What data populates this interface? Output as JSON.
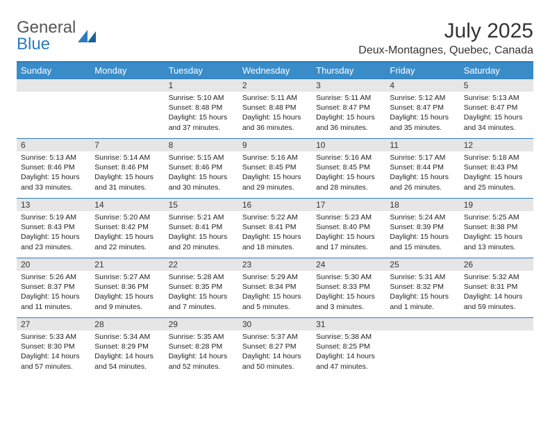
{
  "logo": {
    "text1": "General",
    "text2": "Blue"
  },
  "title": "July 2025",
  "location": "Deux-Montagnes, Quebec, Canada",
  "colors": {
    "header_bg": "#3a8cc9",
    "divider": "#2b7bbf",
    "day_head_bg": "#e6e6e6",
    "text": "#222222"
  },
  "weekday_labels": [
    "Sunday",
    "Monday",
    "Tuesday",
    "Wednesday",
    "Thursday",
    "Friday",
    "Saturday"
  ],
  "grid": {
    "cols": 7,
    "rows": 5,
    "first_weekday_index": 2,
    "days_in_month": 31
  },
  "days": {
    "1": {
      "sunrise": "5:10 AM",
      "sunset": "8:48 PM",
      "daylight": "15 hours and 37 minutes."
    },
    "2": {
      "sunrise": "5:11 AM",
      "sunset": "8:48 PM",
      "daylight": "15 hours and 36 minutes."
    },
    "3": {
      "sunrise": "5:11 AM",
      "sunset": "8:47 PM",
      "daylight": "15 hours and 36 minutes."
    },
    "4": {
      "sunrise": "5:12 AM",
      "sunset": "8:47 PM",
      "daylight": "15 hours and 35 minutes."
    },
    "5": {
      "sunrise": "5:13 AM",
      "sunset": "8:47 PM",
      "daylight": "15 hours and 34 minutes."
    },
    "6": {
      "sunrise": "5:13 AM",
      "sunset": "8:46 PM",
      "daylight": "15 hours and 33 minutes."
    },
    "7": {
      "sunrise": "5:14 AM",
      "sunset": "8:46 PM",
      "daylight": "15 hours and 31 minutes."
    },
    "8": {
      "sunrise": "5:15 AM",
      "sunset": "8:46 PM",
      "daylight": "15 hours and 30 minutes."
    },
    "9": {
      "sunrise": "5:16 AM",
      "sunset": "8:45 PM",
      "daylight": "15 hours and 29 minutes."
    },
    "10": {
      "sunrise": "5:16 AM",
      "sunset": "8:45 PM",
      "daylight": "15 hours and 28 minutes."
    },
    "11": {
      "sunrise": "5:17 AM",
      "sunset": "8:44 PM",
      "daylight": "15 hours and 26 minutes."
    },
    "12": {
      "sunrise": "5:18 AM",
      "sunset": "8:43 PM",
      "daylight": "15 hours and 25 minutes."
    },
    "13": {
      "sunrise": "5:19 AM",
      "sunset": "8:43 PM",
      "daylight": "15 hours and 23 minutes."
    },
    "14": {
      "sunrise": "5:20 AM",
      "sunset": "8:42 PM",
      "daylight": "15 hours and 22 minutes."
    },
    "15": {
      "sunrise": "5:21 AM",
      "sunset": "8:41 PM",
      "daylight": "15 hours and 20 minutes."
    },
    "16": {
      "sunrise": "5:22 AM",
      "sunset": "8:41 PM",
      "daylight": "15 hours and 18 minutes."
    },
    "17": {
      "sunrise": "5:23 AM",
      "sunset": "8:40 PM",
      "daylight": "15 hours and 17 minutes."
    },
    "18": {
      "sunrise": "5:24 AM",
      "sunset": "8:39 PM",
      "daylight": "15 hours and 15 minutes."
    },
    "19": {
      "sunrise": "5:25 AM",
      "sunset": "8:38 PM",
      "daylight": "15 hours and 13 minutes."
    },
    "20": {
      "sunrise": "5:26 AM",
      "sunset": "8:37 PM",
      "daylight": "15 hours and 11 minutes."
    },
    "21": {
      "sunrise": "5:27 AM",
      "sunset": "8:36 PM",
      "daylight": "15 hours and 9 minutes."
    },
    "22": {
      "sunrise": "5:28 AM",
      "sunset": "8:35 PM",
      "daylight": "15 hours and 7 minutes."
    },
    "23": {
      "sunrise": "5:29 AM",
      "sunset": "8:34 PM",
      "daylight": "15 hours and 5 minutes."
    },
    "24": {
      "sunrise": "5:30 AM",
      "sunset": "8:33 PM",
      "daylight": "15 hours and 3 minutes."
    },
    "25": {
      "sunrise": "5:31 AM",
      "sunset": "8:32 PM",
      "daylight": "15 hours and 1 minute."
    },
    "26": {
      "sunrise": "5:32 AM",
      "sunset": "8:31 PM",
      "daylight": "14 hours and 59 minutes."
    },
    "27": {
      "sunrise": "5:33 AM",
      "sunset": "8:30 PM",
      "daylight": "14 hours and 57 minutes."
    },
    "28": {
      "sunrise": "5:34 AM",
      "sunset": "8:29 PM",
      "daylight": "14 hours and 54 minutes."
    },
    "29": {
      "sunrise": "5:35 AM",
      "sunset": "8:28 PM",
      "daylight": "14 hours and 52 minutes."
    },
    "30": {
      "sunrise": "5:37 AM",
      "sunset": "8:27 PM",
      "daylight": "14 hours and 50 minutes."
    },
    "31": {
      "sunrise": "5:38 AM",
      "sunset": "8:25 PM",
      "daylight": "14 hours and 47 minutes."
    }
  },
  "labels": {
    "sunrise": "Sunrise: ",
    "sunset": "Sunset: ",
    "daylight": "Daylight: "
  }
}
